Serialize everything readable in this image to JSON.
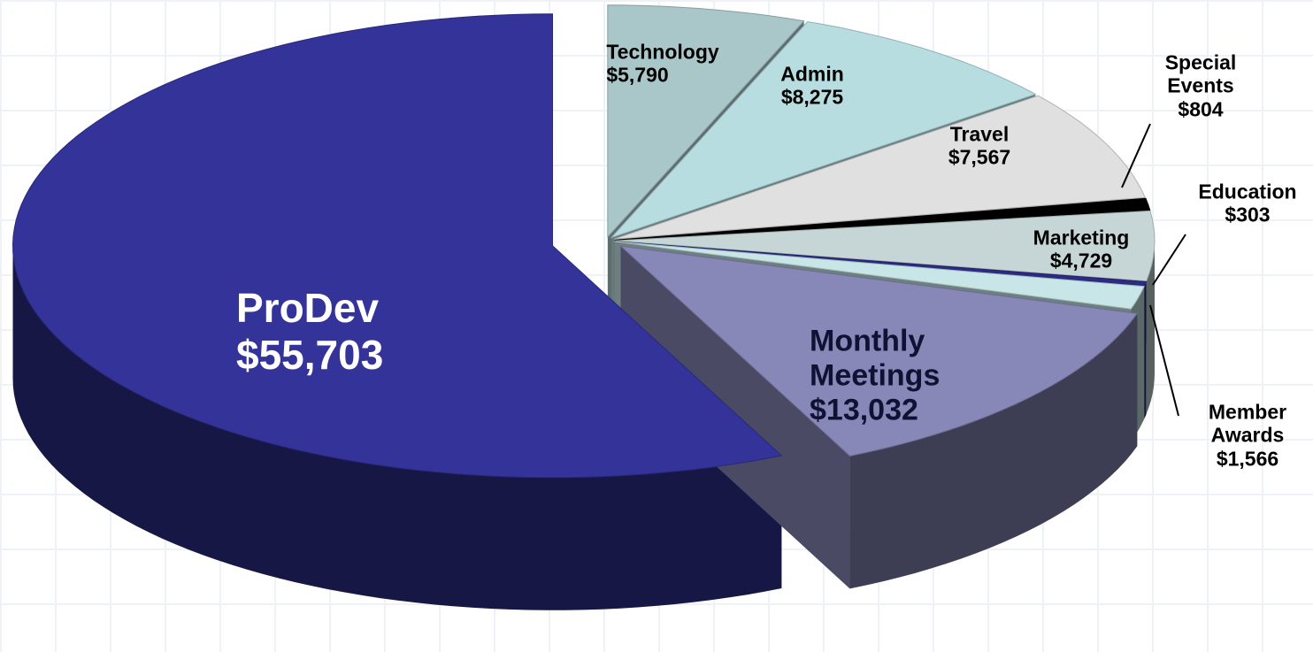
{
  "chart_data": {
    "type": "pie",
    "categories": [
      "Technology",
      "Admin",
      "Travel",
      "Special Events",
      "Marketing",
      "Education",
      "Member Awards",
      "Monthly Meetings",
      "ProDev"
    ],
    "values": [
      5790,
      8275,
      7567,
      804,
      4729,
      303,
      1566,
      13032,
      55703
    ],
    "value_labels": [
      "$5,790",
      "$8,275",
      "$7,567",
      "$804",
      "$4,729",
      "$303",
      "$1,566",
      "$13,032",
      "$55,703"
    ],
    "colors": [
      "#a9c6c9",
      "#b7dde0",
      "#e0e0e0",
      "#000000",
      "#c6d6d6",
      "#2b2b85",
      "#c8e6e8",
      "#8787b8",
      "#333399"
    ]
  }
}
